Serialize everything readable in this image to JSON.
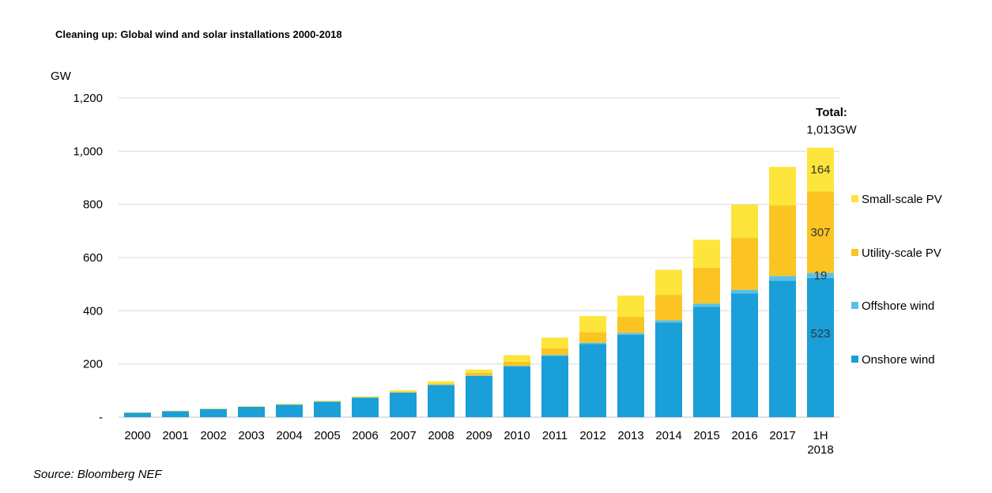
{
  "title": "Cleaning up: Global wind and solar installations 2000-2018",
  "source": "Source: Bloomberg NEF",
  "chart_data": {
    "type": "bar",
    "stacked": true,
    "unit_label": "GW",
    "ylim": [
      0,
      1200
    ],
    "yticks": [
      {
        "value": 0,
        "label": "-"
      },
      {
        "value": 200,
        "label": "200"
      },
      {
        "value": 400,
        "label": "400"
      },
      {
        "value": 600,
        "label": "600"
      },
      {
        "value": 800,
        "label": "800"
      },
      {
        "value": 1000,
        "label": "1,000"
      },
      {
        "value": 1200,
        "label": "1,200"
      }
    ],
    "grid": true,
    "legend_position": "right",
    "categories": [
      "2000",
      "2001",
      "2002",
      "2003",
      "2004",
      "2005",
      "2006",
      "2007",
      "2008",
      "2009",
      "2010",
      "2011",
      "2012",
      "2013",
      "2014",
      "2015",
      "2016",
      "2017",
      "1H 2018"
    ],
    "series": [
      {
        "name": "Onshore wind",
        "color": "#1a9fd8",
        "values": [
          17,
          23,
          31,
          39,
          47,
          58,
          73,
          92,
          120,
          155,
          190,
          230,
          275,
          310,
          355,
          415,
          465,
          513,
          523
        ]
      },
      {
        "name": "Offshore wind",
        "color": "#5bc0e6",
        "values": [
          0,
          0,
          0,
          0,
          0,
          1,
          1,
          1,
          2,
          2,
          3,
          4,
          5,
          7,
          9,
          12,
          14,
          18,
          19
        ]
      },
      {
        "name": "Utility-scale PV",
        "color": "#fcc422",
        "values": [
          0,
          0,
          0,
          0,
          0,
          0,
          0,
          2,
          4,
          10,
          15,
          25,
          40,
          60,
          95,
          135,
          195,
          265,
          307
        ]
      },
      {
        "name": "Small-scale PV",
        "color": "#fde53c",
        "values": [
          1,
          1,
          1,
          2,
          3,
          3,
          4,
          6,
          9,
          12,
          25,
          40,
          60,
          80,
          95,
          105,
          125,
          145,
          164
        ]
      }
    ],
    "annotations": {
      "total_label": "Total:",
      "total_value": "1,013GW",
      "segment_labels": [
        "164",
        "307",
        "19",
        "523"
      ]
    }
  }
}
